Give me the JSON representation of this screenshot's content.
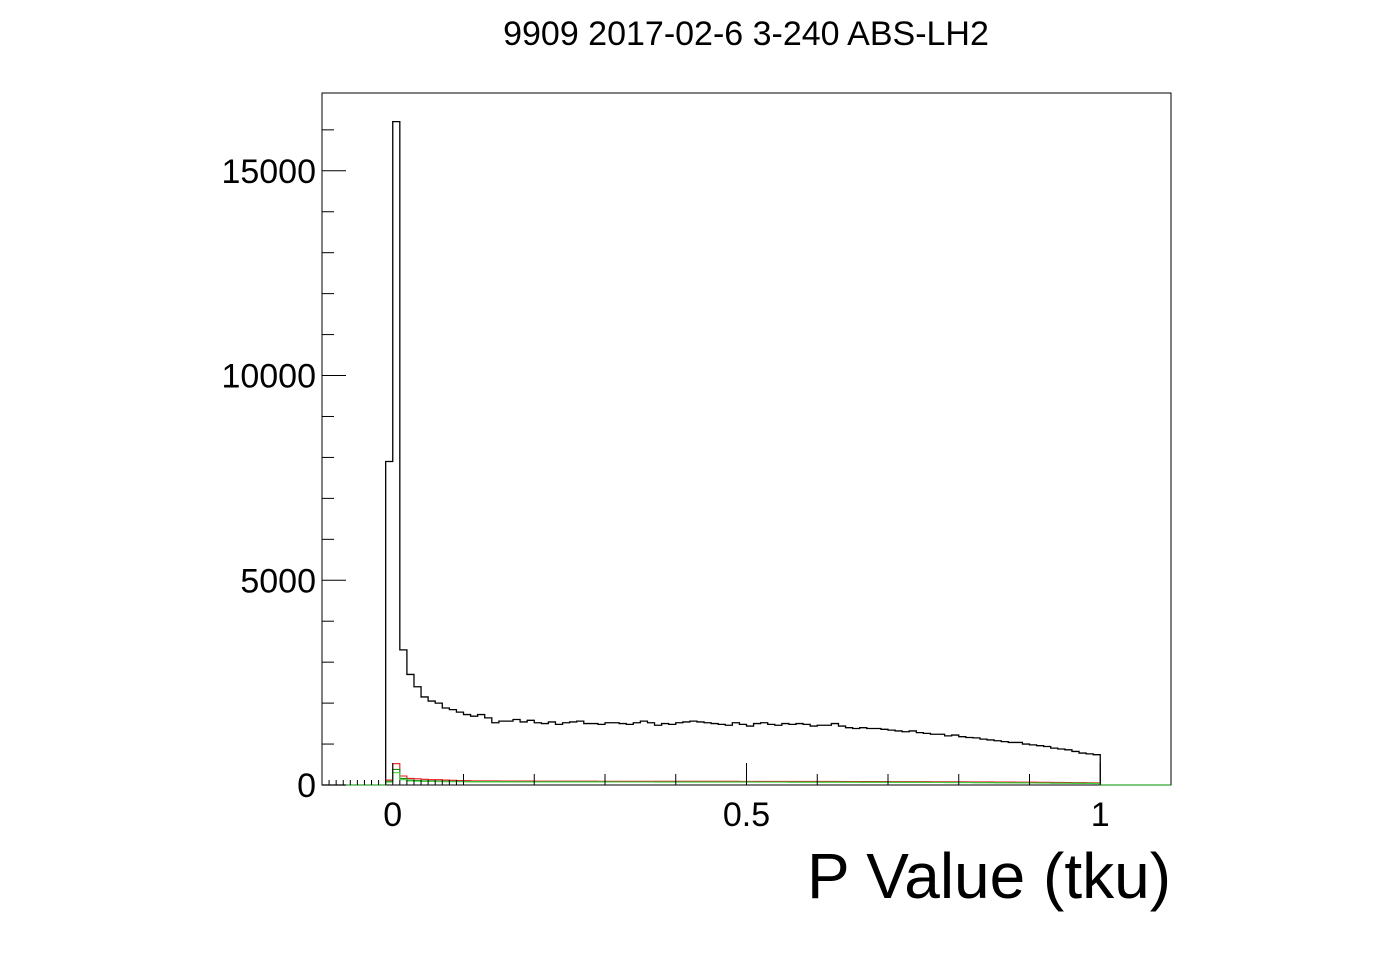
{
  "chart_data": {
    "type": "histogram",
    "title": "9909 2017-02-6 3-240 ABS-LH2",
    "xlabel": "P Value (tku)",
    "ylabel": "",
    "xlim": [
      -0.1,
      1.1
    ],
    "ylim": [
      0,
      16900
    ],
    "xticks": [
      0,
      0.5,
      1
    ],
    "xtick_labels": [
      "0",
      "0.5",
      "1"
    ],
    "yticks": [
      0,
      5000,
      10000,
      15000
    ],
    "ytick_labels": [
      "0",
      "5000",
      "10000",
      "15000"
    ],
    "grid": false,
    "bin_range": [
      -0.01,
      1.0
    ],
    "bin_width": 0.01,
    "series": [
      {
        "color": "#000000",
        "values": [
          7900,
          16200,
          3300,
          2700,
          2400,
          2150,
          2050,
          2000,
          1880,
          1840,
          1780,
          1720,
          1680,
          1720,
          1640,
          1520,
          1560,
          1560,
          1600,
          1540,
          1580,
          1520,
          1500,
          1540,
          1480,
          1520,
          1540,
          1560,
          1500,
          1500,
          1480,
          1520,
          1520,
          1500,
          1480,
          1520,
          1560,
          1520,
          1460,
          1500,
          1480,
          1520,
          1540,
          1560,
          1540,
          1520,
          1500,
          1480,
          1460,
          1520,
          1480,
          1440,
          1500,
          1520,
          1480,
          1460,
          1500,
          1480,
          1500,
          1480,
          1440,
          1460,
          1460,
          1500,
          1440,
          1400,
          1380,
          1400,
          1380,
          1380,
          1360,
          1340,
          1320,
          1300,
          1320,
          1280,
          1260,
          1240,
          1240,
          1200,
          1220,
          1180,
          1160,
          1150,
          1120,
          1100,
          1080,
          1060,
          1040,
          1040,
          1000,
          980,
          960,
          940,
          900,
          880,
          860,
          820,
          780,
          760,
          740
        ]
      },
      {
        "color": "#e8141a",
        "values": [
          120,
          520,
          220,
          160,
          150,
          140,
          130,
          130,
          120,
          115,
          110,
          105,
          100,
          100,
          100,
          100,
          98,
          96,
          96,
          95,
          95,
          94,
          94,
          93,
          93,
          92,
          92,
          92,
          92,
          92,
          91,
          91,
          91,
          90,
          90,
          90,
          90,
          90,
          90,
          90,
          90,
          90,
          90,
          90,
          90,
          90,
          89,
          89,
          89,
          89,
          88,
          88,
          88,
          88,
          88,
          88,
          87,
          87,
          87,
          87,
          86,
          86,
          86,
          86,
          85,
          85,
          84,
          84,
          84,
          83,
          83,
          82,
          82,
          81,
          81,
          80,
          80,
          79,
          79,
          78,
          78,
          77,
          76,
          76,
          75,
          74,
          73,
          72,
          71,
          70,
          69,
          68,
          66,
          65,
          64,
          62,
          60,
          58,
          56,
          54,
          52
        ]
      },
      {
        "color": "#1a8a1a",
        "values": [
          90,
          380,
          160,
          120,
          110,
          100,
          96,
          94,
          90,
          88,
          86,
          84,
          82,
          82,
          80,
          80,
          80,
          80,
          79,
          79,
          79,
          78,
          78,
          78,
          78,
          78,
          77,
          77,
          77,
          77,
          77,
          77,
          76,
          76,
          76,
          76,
          76,
          76,
          76,
          75,
          75,
          75,
          75,
          75,
          75,
          75,
          74,
          74,
          74,
          74,
          74,
          74,
          73,
          73,
          73,
          73,
          73,
          72,
          72,
          72,
          72,
          71,
          71,
          71,
          70,
          70,
          70,
          69,
          69,
          68,
          68,
          67,
          67,
          66,
          66,
          65,
          65,
          64,
          64,
          63,
          62,
          62,
          61,
          60,
          59,
          58,
          57,
          56,
          55,
          54,
          53,
          52,
          51,
          50,
          48,
          47,
          46,
          44,
          42,
          40,
          38
        ]
      },
      {
        "color": "#3fcf3f",
        "values": [
          70,
          300,
          130,
          100,
          92,
          88,
          86,
          84,
          82,
          80,
          80,
          78,
          78,
          78,
          77,
          77,
          76,
          76,
          76,
          76,
          75,
          75,
          75,
          75,
          75,
          74,
          74,
          74,
          74,
          74,
          74,
          73,
          73,
          73,
          73,
          73,
          73,
          73,
          72,
          72,
          72,
          72,
          72,
          72,
          72,
          72,
          71,
          71,
          71,
          71,
          71,
          71,
          70,
          70,
          70,
          70,
          70,
          69,
          69,
          69,
          69,
          68,
          68,
          68,
          67,
          67,
          67,
          66,
          66,
          65,
          65,
          64,
          64,
          63,
          63,
          62,
          62,
          61,
          61,
          60,
          59,
          59,
          58,
          57,
          56,
          55,
          54,
          53,
          52,
          51,
          50,
          49,
          48,
          47,
          45,
          44,
          43,
          41,
          39,
          37,
          35
        ]
      }
    ]
  }
}
